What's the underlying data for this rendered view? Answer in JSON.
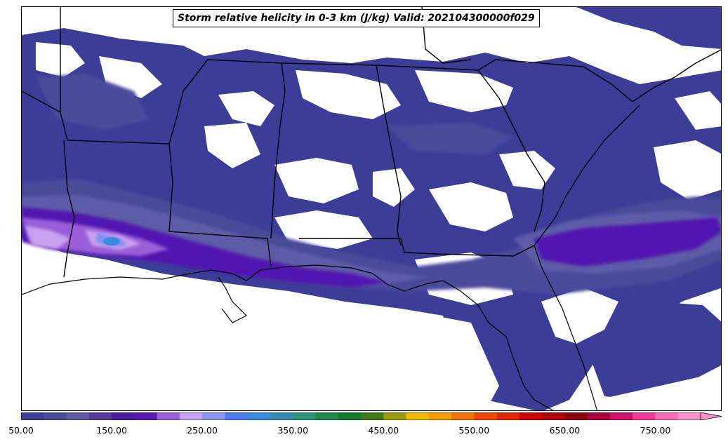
{
  "title": "Storm relative helicity in 0-3 km (J/kg) Valid: 202104300000f029",
  "map": {
    "variable": "Storm relative helicity in 0-3 km",
    "units": "J/kg",
    "valid": "202104300000f029",
    "region": "Southeastern United States and Gulf of Mexico",
    "overlays": [
      "state-borders",
      "coastlines"
    ]
  },
  "colorbar": {
    "min": 50,
    "max": 800,
    "step": 25,
    "extend": "max",
    "tick_labels": [
      "50.00",
      "150.00",
      "250.00",
      "350.00",
      "450.00",
      "550.00",
      "650.00",
      "750.00"
    ],
    "colors": [
      "#3b3d98",
      "#4a4a9a",
      "#5e5ba6",
      "#553d9e",
      "#4a1ca6",
      "#5a18b4",
      "#9a5ed8",
      "#c9a0f0",
      "#8c96f2",
      "#4f7af0",
      "#3b8be0",
      "#3a8bb4",
      "#2e9478",
      "#23884a",
      "#137a2c",
      "#3f7d1a",
      "#9a9a14",
      "#f0b800",
      "#f79a00",
      "#f57200",
      "#f04800",
      "#e02800",
      "#cf0000",
      "#b00008",
      "#920010",
      "#a8003e",
      "#d0106a",
      "#f03c98",
      "#f86cb8",
      "#fc90cc"
    ]
  }
}
